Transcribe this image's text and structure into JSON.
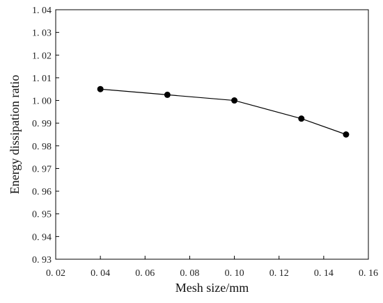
{
  "chart_data": {
    "type": "line",
    "title": "",
    "xlabel": "Mesh size/mm",
    "ylabel": "Energy dissipation ratio",
    "xlim": [
      0.02,
      0.16
    ],
    "ylim": [
      0.93,
      1.04
    ],
    "x_ticks": [
      0.02,
      0.04,
      0.06,
      0.08,
      0.1,
      0.12,
      0.14,
      0.16
    ],
    "x_tick_labels": [
      "0. 02",
      "0. 04",
      "0. 06",
      "0. 08",
      "0. 10",
      "0. 12",
      "0. 14",
      "0. 16"
    ],
    "y_ticks": [
      0.93,
      0.94,
      0.95,
      0.96,
      0.97,
      0.98,
      0.99,
      1.0,
      1.01,
      1.02,
      1.03,
      1.04
    ],
    "y_tick_labels": [
      "0. 93",
      "0. 94",
      "0. 95",
      "0. 96",
      "0. 97",
      "0. 98",
      "0. 99",
      "1. 00",
      "1. 01",
      "1. 02",
      "1. 03",
      "1. 04"
    ],
    "grid": false,
    "legend": false,
    "series": [
      {
        "x": [
          0.04,
          0.07,
          0.1,
          0.13,
          0.15
        ],
        "y": [
          1.005,
          1.0025,
          1.0,
          0.992,
          0.985
        ],
        "color": "#000000",
        "marker": "filled-circle"
      }
    ]
  }
}
